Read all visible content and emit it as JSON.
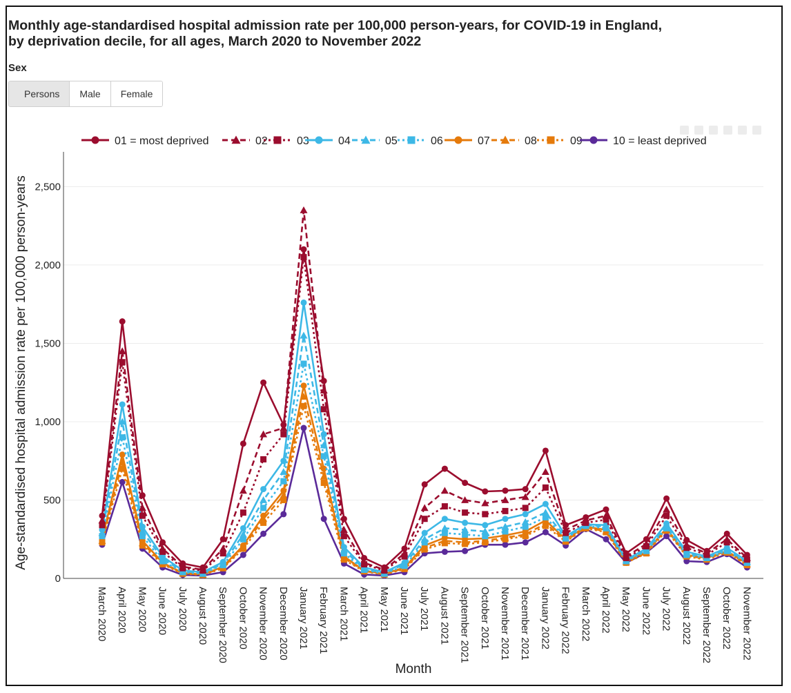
{
  "title_line1": "Monthly age-standardised hospital admission rate per 100,000 person-years, for COVID-19 in England,",
  "title_line2": "by deprivation decile, for all ages, March 2020 to November 2022",
  "filter": {
    "label": "Sex",
    "buttons": [
      "Persons",
      "Male",
      "Female"
    ],
    "selected": "Persons"
  },
  "modebar_icons": [
    "camera-icon",
    "zoom-icon",
    "pan-icon",
    "plus-icon",
    "magnify-icon",
    "home-icon"
  ],
  "chart_data": {
    "type": "line",
    "xlabel": "Month",
    "ylabel": "Age-standardised hospital admission rate per 100,000 person-years",
    "ylim": [
      0,
      2700
    ],
    "yticks": [
      0,
      500,
      1000,
      1500,
      2000,
      2500
    ],
    "ytick_labels": [
      "0",
      "500",
      "1,000",
      "1,500",
      "2,000",
      "2,500"
    ],
    "grid": "horizontal",
    "legend_position": "top",
    "categories": [
      "March 2020",
      "April 2020",
      "May 2020",
      "June 2020",
      "July 2020",
      "August 2020",
      "September 2020",
      "October 2020",
      "November 2020",
      "December 2020",
      "January 2021",
      "February 2021",
      "March 2021",
      "April 2021",
      "May 2021",
      "June 2021",
      "July 2021",
      "August 2021",
      "September 2021",
      "October 2021",
      "November 2021",
      "December 2021",
      "January 2022",
      "February 2022",
      "March 2022",
      "April 2022",
      "May 2022",
      "June 2022",
      "July 2022",
      "August 2022",
      "September 2022",
      "October 2022",
      "November 2022"
    ],
    "series": [
      {
        "name": "01 = most deprived",
        "color": "#9b0d2e",
        "dash": "solid",
        "marker": "circle",
        "values": [
          400,
          1640,
          530,
          230,
          95,
          70,
          250,
          860,
          1250,
          980,
          2100,
          1260,
          380,
          130,
          70,
          190,
          600,
          700,
          610,
          555,
          560,
          570,
          815,
          340,
          390,
          440,
          160,
          250,
          510,
          245,
          175,
          285,
          150
        ]
      },
      {
        "name": "02",
        "color": "#9b0d2e",
        "dash": "dash",
        "marker": "triangle",
        "values": [
          370,
          1450,
          450,
          190,
          75,
          55,
          190,
          560,
          920,
          960,
          2350,
          1200,
          310,
          100,
          55,
          160,
          450,
          560,
          500,
          480,
          500,
          520,
          680,
          310,
          370,
          400,
          140,
          220,
          440,
          215,
          160,
          250,
          130
        ]
      },
      {
        "name": "03",
        "color": "#9b0d2e",
        "dash": "dot",
        "marker": "square",
        "values": [
          340,
          1380,
          400,
          170,
          65,
          50,
          160,
          420,
          760,
          920,
          2050,
          1080,
          270,
          90,
          50,
          140,
          380,
          460,
          420,
          410,
          430,
          450,
          580,
          290,
          355,
          375,
          130,
          205,
          400,
          195,
          150,
          230,
          120
        ]
      },
      {
        "name": "04",
        "color": "#3db8e6",
        "dash": "solid",
        "marker": "circle",
        "values": [
          310,
          1110,
          330,
          140,
          50,
          40,
          105,
          320,
          570,
          750,
          1760,
          920,
          200,
          70,
          40,
          100,
          290,
          380,
          355,
          340,
          380,
          410,
          475,
          270,
          345,
          340,
          120,
          190,
          350,
          170,
          140,
          195,
          110
        ]
      },
      {
        "name": "05",
        "color": "#3db8e6",
        "dash": "dash",
        "marker": "triangle",
        "values": [
          290,
          1000,
          300,
          125,
          45,
          35,
          95,
          280,
          500,
          680,
          1550,
          850,
          180,
          60,
          35,
          90,
          250,
          320,
          310,
          300,
          330,
          360,
          420,
          260,
          340,
          330,
          115,
          180,
          335,
          160,
          135,
          185,
          105
        ]
      },
      {
        "name": "06",
        "color": "#3db8e6",
        "dash": "dot",
        "marker": "square",
        "values": [
          270,
          900,
          270,
          110,
          40,
          30,
          85,
          250,
          450,
          620,
          1370,
          780,
          160,
          55,
          30,
          80,
          230,
          290,
          280,
          270,
          300,
          330,
          390,
          255,
          335,
          320,
          110,
          175,
          320,
          150,
          130,
          175,
          100
        ]
      },
      {
        "name": "07",
        "color": "#e57a0b",
        "dash": "solid",
        "marker": "circle",
        "values": [
          250,
          790,
          240,
          100,
          35,
          25,
          75,
          210,
          400,
          560,
          1230,
          700,
          140,
          50,
          28,
          70,
          210,
          260,
          250,
          255,
          275,
          300,
          370,
          250,
          330,
          310,
          110,
          170,
          320,
          150,
          130,
          175,
          95
        ]
      },
      {
        "name": "08",
        "color": "#e57a0b",
        "dash": "dash",
        "marker": "triangle",
        "values": [
          240,
          740,
          225,
          95,
          33,
          24,
          70,
          200,
          380,
          530,
          1160,
          650,
          130,
          47,
          26,
          65,
          195,
          240,
          230,
          240,
          260,
          280,
          350,
          240,
          325,
          300,
          105,
          165,
          315,
          145,
          125,
          170,
          90
        ]
      },
      {
        "name": "09",
        "color": "#e57a0b",
        "dash": "dot",
        "marker": "square",
        "values": [
          230,
          700,
          210,
          90,
          30,
          22,
          65,
          190,
          355,
          500,
          1100,
          610,
          120,
          45,
          25,
          60,
          185,
          225,
          220,
          230,
          250,
          270,
          335,
          235,
          320,
          295,
          100,
          160,
          305,
          140,
          120,
          165,
          85
        ]
      },
      {
        "name": "10 = least deprived",
        "color": "#5a2a99",
        "dash": "solid",
        "marker": "circle",
        "values": [
          215,
          615,
          190,
          70,
          22,
          18,
          40,
          150,
          285,
          410,
          960,
          380,
          95,
          25,
          18,
          40,
          160,
          170,
          175,
          215,
          215,
          230,
          295,
          210,
          315,
          250,
          100,
          165,
          270,
          110,
          105,
          155,
          70
        ]
      }
    ]
  }
}
